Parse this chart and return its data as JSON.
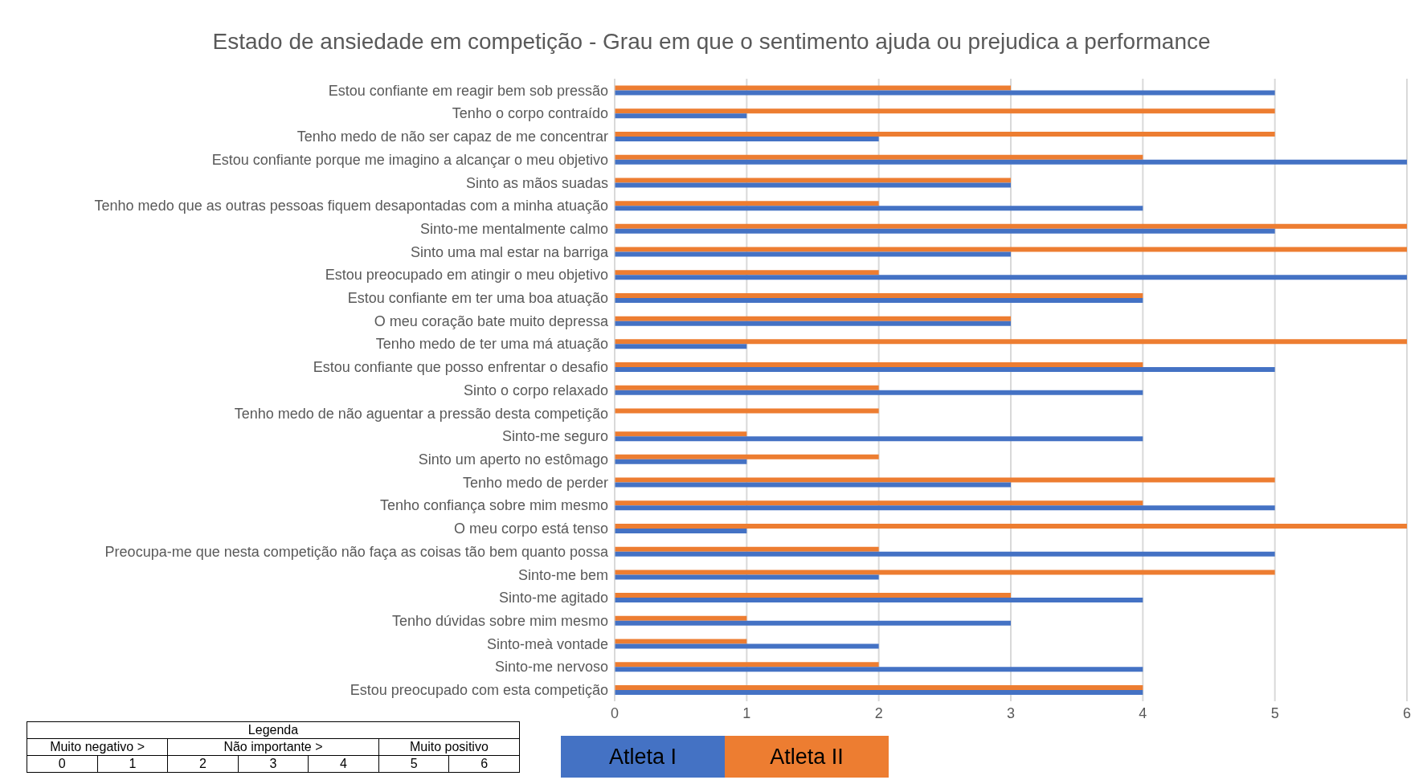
{
  "chart_data": {
    "type": "bar",
    "orientation": "horizontal",
    "title": "Estado de ansiedade em competição - Grau em que o sentimento ajuda ou prejudica a performance",
    "categories": [
      "Estou confiante em reagir bem sob pressão",
      "Tenho o corpo contraído",
      "Tenho medo de não ser capaz de me concentrar",
      "Estou confiante porque me imagino a alcançar o meu objetivo",
      "Sinto as mãos suadas",
      "Tenho medo que as outras pessoas fiquem desapontadas com a minha atuação",
      "Sinto-me mentalmente calmo",
      "Sinto uma mal estar na barriga",
      "Estou preocupado em atingir o meu objetivo",
      "Estou confiante em ter uma boa atuação",
      "O meu coração bate muito depressa",
      "Tenho medo de ter uma má atuação",
      "Estou confiante que posso enfrentar o desafio",
      "Sinto o corpo relaxado",
      "Tenho medo de não aguentar a pressão desta competição",
      "Sinto-me seguro",
      "Sinto um aperto no estômago",
      "Tenho medo de perder",
      "Tenho confiança sobre mim mesmo",
      "O meu corpo está tenso",
      "Preocupa-me que nesta competição não faça as coisas tão bem quanto possa",
      "Sinto-me bem",
      "Sinto-me agitado",
      "Tenho dúvidas sobre mim mesmo",
      "Sinto-meà vontade",
      "Sinto-me nervoso",
      "Estou preocupado com esta competição"
    ],
    "series": [
      {
        "name": "Atleta I",
        "color": "#4472c4",
        "values": [
          5,
          1,
          2,
          6,
          3,
          4,
          5,
          3,
          6,
          4,
          3,
          1,
          5,
          4,
          0,
          4,
          1,
          3,
          5,
          1,
          5,
          2,
          4,
          3,
          2,
          4,
          4
        ]
      },
      {
        "name": "Atleta II",
        "color": "#ed7d31",
        "values": [
          3,
          5,
          5,
          4,
          3,
          2,
          6,
          6,
          2,
          4,
          3,
          6,
          4,
          2,
          2,
          1,
          2,
          5,
          4,
          6,
          2,
          5,
          3,
          1,
          1,
          2,
          4
        ]
      }
    ],
    "xlim": [
      0,
      6
    ],
    "xticks": [
      0,
      1,
      2,
      3,
      4,
      5,
      6
    ],
    "grid": "x",
    "legend": "bottom",
    "annotations": [
      "Legenda",
      "Muito negativo >",
      "Não importante >",
      "Muito positivo",
      "0",
      "1",
      "2",
      "3",
      "4",
      "5",
      "6"
    ]
  }
}
